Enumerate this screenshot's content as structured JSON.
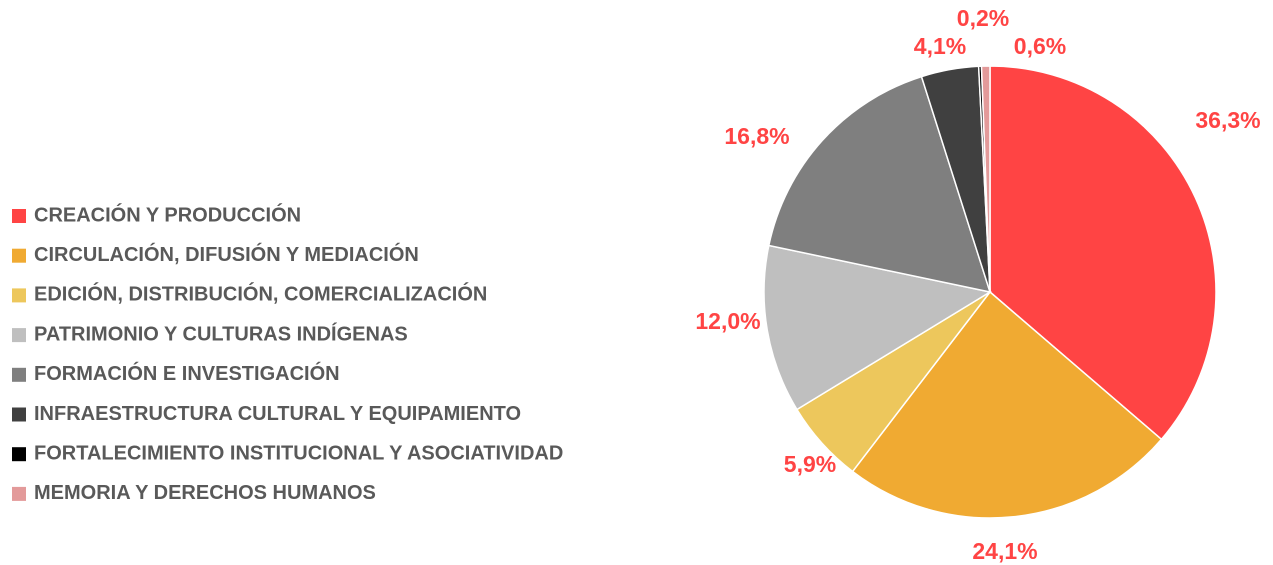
{
  "chart_data": {
    "type": "pie",
    "categories": [
      "CREACIÓN Y PRODUCCIÓN",
      "CIRCULACIÓN, DIFUSIÓN Y MEDIACIÓN",
      "EDICIÓN, DISTRIBUCIÓN, COMERCIALIZACIÓN",
      "PATRIMONIO Y CULTURAS INDÍGENAS",
      "FORMACIÓN E INVESTIGACIÓN",
      "INFRAESTRUCTURA CULTURAL Y EQUIPAMIENTO",
      "FORTALECIMIENTO INSTITUCIONAL Y ASOCIATIVIDAD",
      "MEMORIA Y DERECHOS HUMANOS"
    ],
    "values": [
      36.3,
      24.1,
      5.9,
      12.0,
      16.8,
      4.1,
      0.2,
      0.6
    ],
    "value_labels": [
      "36,3%",
      "24,1%",
      "5,9%",
      "12,0%",
      "16,8%",
      "4,1%",
      "0,2%",
      "0,6%"
    ],
    "colors": [
      "#ff4444",
      "#f0aa32",
      "#edc75c",
      "#bfbfbf",
      "#7f7f7f",
      "#404040",
      "#000000",
      "#e39a9a"
    ],
    "legend": "left"
  }
}
